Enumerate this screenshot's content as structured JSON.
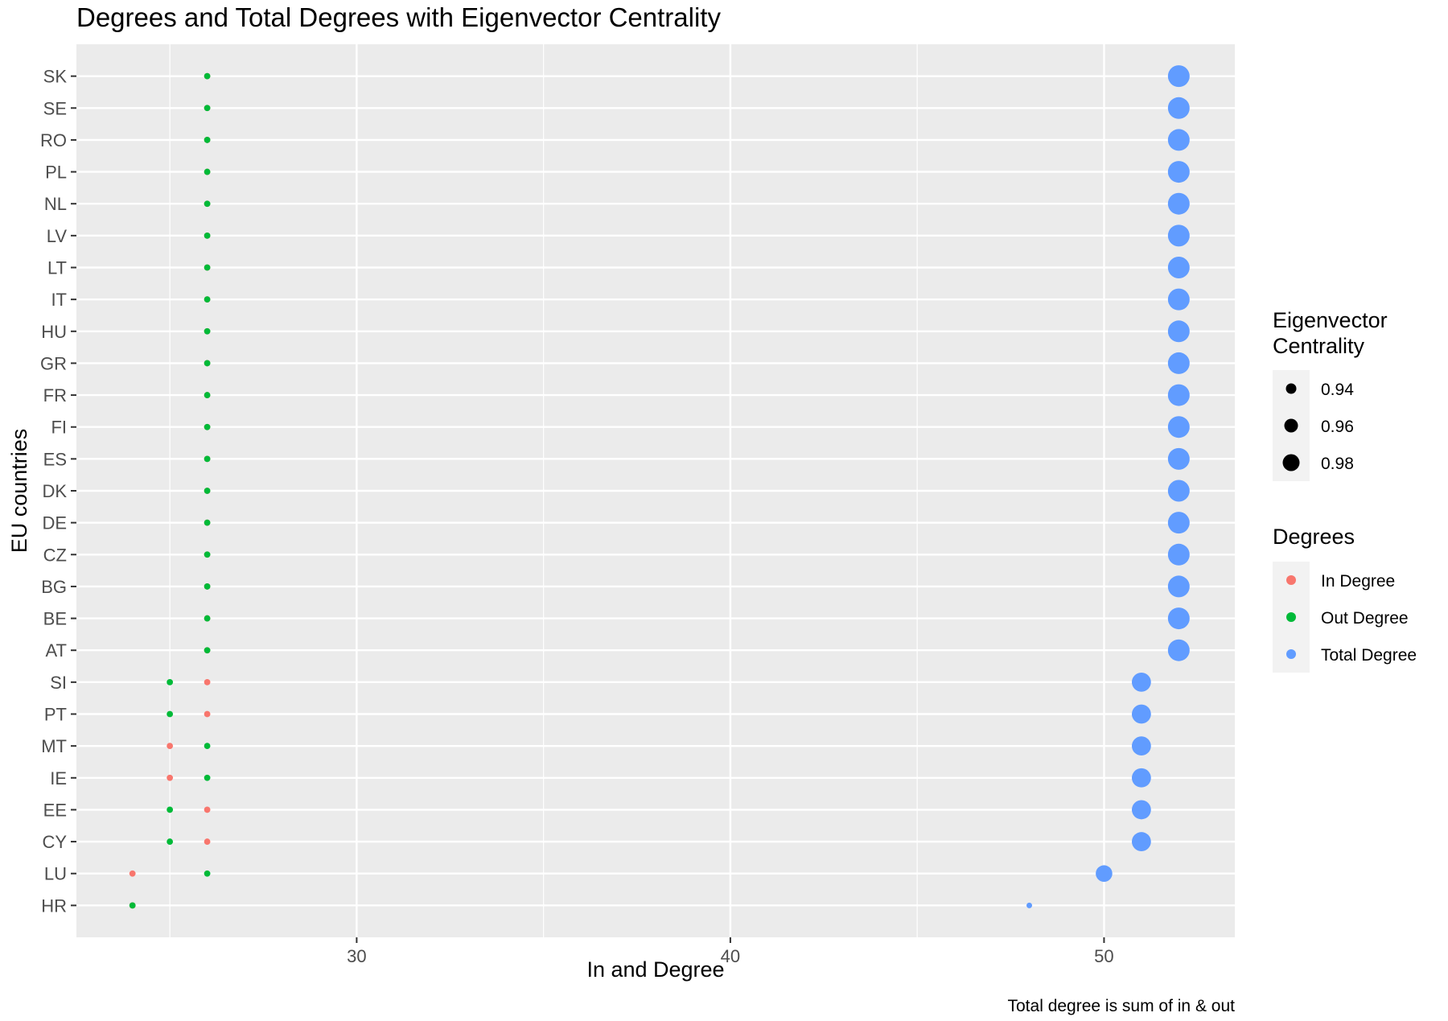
{
  "chart_data": {
    "type": "scatter",
    "title": "Degrees and Total Degrees with Eigenvector Centrality",
    "xlabel": "In and Degree",
    "ylabel": "EU countries",
    "caption": "Total degree is sum of in & out",
    "xlim": [
      22.5,
      53.5
    ],
    "x_ticks": [
      30,
      40,
      50
    ],
    "x_tick_labels": [
      "30",
      "40",
      "50"
    ],
    "grid": true,
    "categories": [
      "HR",
      "LU",
      "CY",
      "EE",
      "IE",
      "MT",
      "PT",
      "SI",
      "AT",
      "BE",
      "BG",
      "CZ",
      "DE",
      "DK",
      "ES",
      "FI",
      "FR",
      "GR",
      "HU",
      "IT",
      "LT",
      "LV",
      "NL",
      "PL",
      "RO",
      "SE",
      "SK"
    ],
    "series": [
      {
        "name": "In Degree",
        "color": "#F8766D",
        "values": [
          24,
          24,
          26,
          26,
          25,
          25,
          26,
          26,
          26,
          26,
          26,
          26,
          26,
          26,
          26,
          26,
          26,
          26,
          26,
          26,
          26,
          26,
          26,
          26,
          26,
          26,
          26
        ],
        "eigenvector_centrality": [
          0.93,
          0.93,
          0.93,
          0.93,
          0.93,
          0.93,
          0.93,
          0.93,
          0.93,
          0.93,
          0.93,
          0.93,
          0.93,
          0.93,
          0.93,
          0.93,
          0.93,
          0.93,
          0.93,
          0.93,
          0.93,
          0.93,
          0.93,
          0.93,
          0.93,
          0.93,
          0.93
        ]
      },
      {
        "name": "Out Degree",
        "color": "#00BA38",
        "values": [
          24,
          26,
          25,
          25,
          26,
          26,
          25,
          25,
          26,
          26,
          26,
          26,
          26,
          26,
          26,
          26,
          26,
          26,
          26,
          26,
          26,
          26,
          26,
          26,
          26,
          26,
          26
        ],
        "eigenvector_centrality": [
          0.93,
          0.93,
          0.93,
          0.93,
          0.93,
          0.93,
          0.93,
          0.93,
          0.93,
          0.93,
          0.93,
          0.93,
          0.93,
          0.93,
          0.93,
          0.93,
          0.93,
          0.93,
          0.93,
          0.93,
          0.93,
          0.93,
          0.93,
          0.93,
          0.93,
          0.93,
          0.93
        ]
      },
      {
        "name": "Total Degree",
        "color": "#619CFF",
        "values": [
          48,
          50,
          51,
          51,
          51,
          51,
          51,
          51,
          52,
          52,
          52,
          52,
          52,
          52,
          52,
          52,
          52,
          52,
          52,
          52,
          52,
          52,
          52,
          52,
          52,
          52,
          52
        ],
        "eigenvector_centrality": [
          0.92,
          0.97,
          0.98,
          0.98,
          0.98,
          0.98,
          0.98,
          0.98,
          0.99,
          0.99,
          0.99,
          0.99,
          0.99,
          0.99,
          0.99,
          0.99,
          0.99,
          0.99,
          0.99,
          0.99,
          0.99,
          0.99,
          0.99,
          0.99,
          0.99,
          0.99,
          0.99
        ]
      }
    ],
    "legend": {
      "placement": "right",
      "size_title": "Eigenvector\nCentrality",
      "size_title_lines": [
        "Eigenvector",
        "Centrality"
      ],
      "size_entries": [
        {
          "label": "0.94",
          "value": 0.94
        },
        {
          "label": "0.96",
          "value": 0.96
        },
        {
          "label": "0.98",
          "value": 0.98
        }
      ],
      "color_title": "Degrees",
      "color_entries": [
        {
          "label": "In Degree",
          "color": "#F8766D"
        },
        {
          "label": "Out Degree",
          "color": "#00BA38"
        },
        {
          "label": "Total Degree",
          "color": "#619CFF"
        }
      ]
    },
    "colors": {
      "panel_background": "#EBEBEB",
      "grid_major": "#FFFFFF",
      "legend_key_background": "#F2F2F2",
      "legend_size_point": "#000000"
    }
  }
}
